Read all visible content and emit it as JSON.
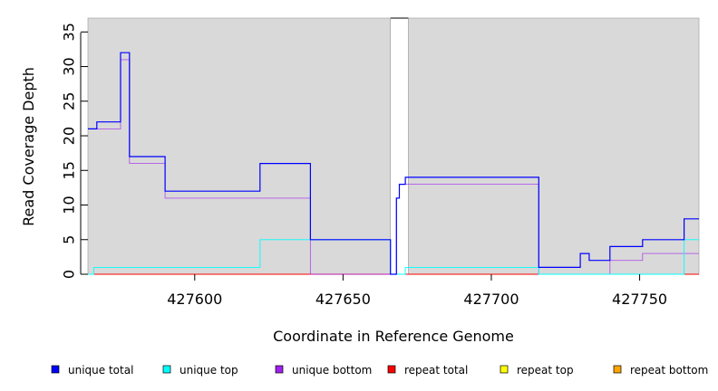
{
  "chart_data": {
    "type": "line",
    "step": true,
    "xlabel": "Coordinate in Reference Genome",
    "ylabel": "Read Coverage Depth",
    "xlim": [
      427564,
      427770
    ],
    "ylim": [
      0,
      37
    ],
    "xticks": [
      427600,
      427650,
      427700,
      427750
    ],
    "yticks": [
      0,
      5,
      10,
      15,
      20,
      25,
      30,
      35
    ],
    "background": "#d9d9d9",
    "gap": [
      427666,
      427672
    ],
    "legend_position": "bottom",
    "series": [
      {
        "name": "unique total",
        "color": "#0000ff",
        "x": [
          427564,
          427567,
          427567,
          427575,
          427575,
          427578,
          427578,
          427590,
          427590,
          427622,
          427622,
          427639,
          427639,
          427666,
          427666,
          427668,
          427668,
          427669,
          427669,
          427671,
          427671,
          427716,
          427716,
          427730,
          427730,
          427733,
          427733,
          427740,
          427740,
          427751,
          427751,
          427765,
          427765,
          427770
        ],
        "y": [
          21,
          21,
          22,
          22,
          32,
          32,
          17,
          17,
          12,
          12,
          16,
          16,
          5,
          5,
          0,
          0,
          11,
          11,
          13,
          13,
          14,
          14,
          1,
          1,
          3,
          3,
          2,
          2,
          4,
          4,
          5,
          5,
          8,
          8
        ]
      },
      {
        "name": "unique top",
        "color": "#00ffff",
        "x": [
          427564,
          427566,
          427566,
          427622,
          427622,
          427666,
          427666,
          427671,
          427671,
          427716,
          427716,
          427765,
          427765,
          427770
        ],
        "y": [
          0,
          0,
          1,
          1,
          5,
          5,
          0,
          0,
          1,
          1,
          0,
          0,
          5,
          5
        ]
      },
      {
        "name": "unique bottom",
        "color": "#a020f0",
        "x": [
          427564,
          427575,
          427575,
          427578,
          427578,
          427590,
          427590,
          427639,
          427639,
          427668,
          427668,
          427669,
          427669,
          427716,
          427716,
          427740,
          427740,
          427751,
          427751,
          427770
        ],
        "y": [
          21,
          21,
          31,
          31,
          16,
          16,
          11,
          11,
          0,
          0,
          11,
          11,
          13,
          13,
          0,
          0,
          2,
          2,
          3,
          3
        ]
      },
      {
        "name": "repeat total",
        "color": "#ff0000",
        "x": [
          427564,
          427770
        ],
        "y": [
          0,
          0
        ]
      },
      {
        "name": "repeat top",
        "color": "#ffff00",
        "x": [
          427564,
          427770
        ],
        "y": [
          0,
          0
        ]
      },
      {
        "name": "repeat bottom",
        "color": "#ffa500",
        "x": [
          427564,
          427770
        ],
        "y": [
          0,
          0
        ]
      }
    ]
  }
}
